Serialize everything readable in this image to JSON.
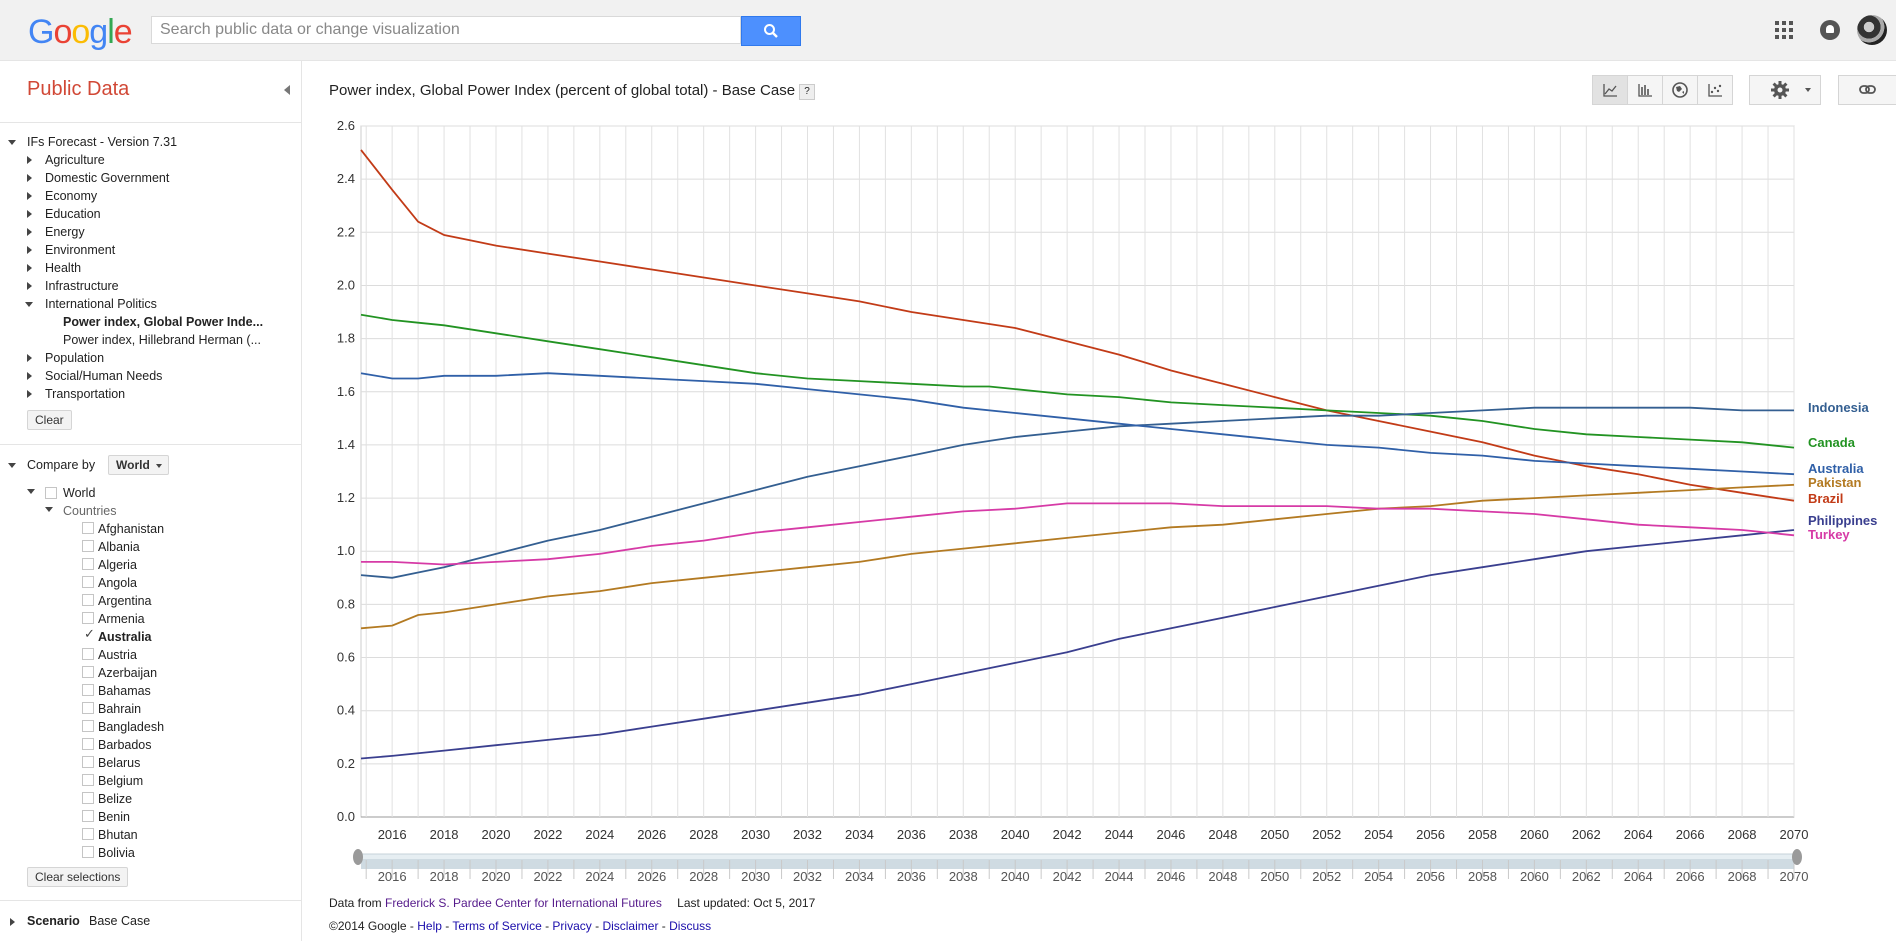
{
  "header": {
    "logo": [
      "G",
      "o",
      "o",
      "g",
      "l",
      "e"
    ],
    "logo_colors": [
      "#4285f4",
      "#ea4335",
      "#fbbc05",
      "#4285f4",
      "#34a853",
      "#ea4335"
    ],
    "search_placeholder": "Search public data or change visualization"
  },
  "sidebar": {
    "title": "Public Data",
    "dataset": "IFs Forecast - Version 7.31",
    "categories": [
      "Agriculture",
      "Domestic Government",
      "Economy",
      "Education",
      "Energy",
      "Environment",
      "Health",
      "Infrastructure",
      "International Politics"
    ],
    "selected_metric": "Power index, Global Power Inde...",
    "other_metric": "Power index, Hillebrand Herman (...",
    "categories_after": [
      "Population",
      "Social/Human Needs",
      "Transportation"
    ],
    "clear_label": "Clear",
    "compare_by_label": "Compare by",
    "compare_by_value": "World",
    "world_label": "World",
    "countries_label": "Countries",
    "countries": [
      "Afghanistan",
      "Albania",
      "Algeria",
      "Angola",
      "Argentina",
      "Armenia",
      "Australia",
      "Austria",
      "Azerbaijan",
      "Bahamas",
      "Bahrain",
      "Bangladesh",
      "Barbados",
      "Belarus",
      "Belgium",
      "Belize",
      "Benin",
      "Bhutan",
      "Bolivia"
    ],
    "checked_country": "Australia",
    "clear_selections_label": "Clear selections",
    "scenario_label": "Scenario",
    "scenario_value": "Base Case"
  },
  "main": {
    "title": "Power index, Global Power Index (percent of global total) - Base Case",
    "help": "?",
    "footer_data_from": "Data from",
    "footer_source": "Frederick S. Pardee Center for International Futures",
    "footer_updated": "Last updated: Oct 5, 2017",
    "footer_copyright": "©2014 Google -",
    "footer_links": [
      "Help",
      "Terms of Service",
      "Privacy",
      "Disclaimer",
      "Discuss"
    ]
  },
  "chart_data": {
    "type": "line",
    "title": "Power index, Global Power Index (percent of global total) - Base Case",
    "xlabel": "",
    "ylabel": "",
    "xlim": [
      2014.8,
      2070
    ],
    "ylim": [
      0,
      2.6
    ],
    "y_ticks": [
      "0.0",
      "0.2",
      "0.4",
      "0.6",
      "0.8",
      "1.0",
      "1.2",
      "1.4",
      "1.6",
      "1.8",
      "2.0",
      "2.2",
      "2.4",
      "2.6"
    ],
    "x_ticks": [
      "2016",
      "2018",
      "2020",
      "2022",
      "2024",
      "2026",
      "2028",
      "2030",
      "2032",
      "2034",
      "2036",
      "2038",
      "2040",
      "2042",
      "2044",
      "2046",
      "2048",
      "2050",
      "2052",
      "2054",
      "2056",
      "2058",
      "2060",
      "2062",
      "2064",
      "2066",
      "2068",
      "2070"
    ],
    "grid": true,
    "legend": "right, labels at line ends",
    "series": [
      {
        "name": "Brazil",
        "color": "#c23b17",
        "x": [
          2014.8,
          2016,
          2017,
          2018,
          2019,
          2020,
          2022,
          2024,
          2026,
          2028,
          2030,
          2032,
          2034,
          2036,
          2038,
          2040,
          2042,
          2044,
          2045,
          2046,
          2048,
          2050,
          2052,
          2054,
          2056,
          2058,
          2060,
          2062,
          2064,
          2066,
          2068,
          2070
        ],
        "y": [
          2.51,
          2.36,
          2.24,
          2.19,
          2.17,
          2.15,
          2.12,
          2.09,
          2.06,
          2.03,
          2.0,
          1.97,
          1.94,
          1.9,
          1.87,
          1.84,
          1.79,
          1.74,
          1.71,
          1.68,
          1.63,
          1.58,
          1.53,
          1.49,
          1.45,
          1.41,
          1.36,
          1.32,
          1.29,
          1.25,
          1.22,
          1.19
        ]
      },
      {
        "name": "Canada",
        "color": "#229322",
        "x": [
          2014.8,
          2016,
          2017,
          2018,
          2020,
          2022,
          2024,
          2026,
          2028,
          2030,
          2032,
          2034,
          2036,
          2038,
          2039,
          2040,
          2042,
          2044,
          2046,
          2048,
          2050,
          2052,
          2054,
          2056,
          2057,
          2058,
          2060,
          2062,
          2064,
          2066,
          2068,
          2070
        ],
        "y": [
          1.89,
          1.87,
          1.86,
          1.85,
          1.82,
          1.79,
          1.76,
          1.73,
          1.7,
          1.67,
          1.65,
          1.64,
          1.63,
          1.62,
          1.62,
          1.61,
          1.59,
          1.58,
          1.56,
          1.55,
          1.54,
          1.53,
          1.52,
          1.51,
          1.5,
          1.49,
          1.46,
          1.44,
          1.43,
          1.42,
          1.41,
          1.39
        ]
      },
      {
        "name": "Indonesia",
        "color": "#345f91",
        "x": [
          2014.8,
          2016,
          2017,
          2018,
          2020,
          2022,
          2024,
          2026,
          2028,
          2030,
          2032,
          2034,
          2036,
          2038,
          2040,
          2042,
          2044,
          2046,
          2048,
          2050,
          2052,
          2054,
          2056,
          2058,
          2060,
          2062,
          2064,
          2066,
          2068,
          2070
        ],
        "y": [
          0.91,
          0.9,
          0.92,
          0.94,
          0.99,
          1.04,
          1.08,
          1.13,
          1.18,
          1.23,
          1.28,
          1.32,
          1.36,
          1.4,
          1.43,
          1.45,
          1.47,
          1.48,
          1.49,
          1.5,
          1.51,
          1.51,
          1.52,
          1.53,
          1.54,
          1.54,
          1.54,
          1.54,
          1.53,
          1.53
        ]
      },
      {
        "name": "Australia",
        "color": "#3060a8",
        "x": [
          2014.8,
          2016,
          2017,
          2018,
          2020,
          2022,
          2024,
          2026,
          2028,
          2030,
          2032,
          2034,
          2036,
          2038,
          2040,
          2042,
          2044,
          2046,
          2048,
          2050,
          2052,
          2054,
          2056,
          2058,
          2060,
          2062,
          2064,
          2066,
          2068,
          2070
        ],
        "y": [
          1.67,
          1.65,
          1.65,
          1.66,
          1.66,
          1.67,
          1.66,
          1.65,
          1.64,
          1.63,
          1.61,
          1.59,
          1.57,
          1.54,
          1.52,
          1.5,
          1.48,
          1.46,
          1.44,
          1.42,
          1.4,
          1.39,
          1.37,
          1.36,
          1.34,
          1.33,
          1.32,
          1.31,
          1.3,
          1.29
        ]
      },
      {
        "name": "Pakistan",
        "color": "#b37a22",
        "x": [
          2014.8,
          2016,
          2017,
          2018,
          2020,
          2022,
          2024,
          2026,
          2028,
          2030,
          2032,
          2034,
          2036,
          2038,
          2040,
          2042,
          2044,
          2046,
          2048,
          2050,
          2052,
          2054,
          2056,
          2058,
          2060,
          2062,
          2064,
          2066,
          2068,
          2070
        ],
        "y": [
          0.71,
          0.72,
          0.76,
          0.77,
          0.8,
          0.83,
          0.85,
          0.88,
          0.9,
          0.92,
          0.94,
          0.96,
          0.99,
          1.01,
          1.03,
          1.05,
          1.07,
          1.09,
          1.1,
          1.12,
          1.14,
          1.16,
          1.17,
          1.19,
          1.2,
          1.21,
          1.22,
          1.23,
          1.24,
          1.25
        ]
      },
      {
        "name": "Philippines",
        "color": "#3a3f8f",
        "x": [
          2014.8,
          2016,
          2018,
          2020,
          2022,
          2024,
          2026,
          2028,
          2030,
          2032,
          2034,
          2036,
          2038,
          2040,
          2042,
          2044,
          2046,
          2048,
          2050,
          2052,
          2054,
          2056,
          2058,
          2060,
          2062,
          2064,
          2066,
          2068,
          2070
        ],
        "y": [
          0.22,
          0.23,
          0.25,
          0.27,
          0.29,
          0.31,
          0.34,
          0.37,
          0.4,
          0.43,
          0.46,
          0.5,
          0.54,
          0.58,
          0.62,
          0.67,
          0.71,
          0.75,
          0.79,
          0.83,
          0.87,
          0.91,
          0.94,
          0.97,
          1.0,
          1.02,
          1.04,
          1.06,
          1.08
        ]
      },
      {
        "name": "Turkey",
        "color": "#d63aa6",
        "x": [
          2014.8,
          2016,
          2018,
          2020,
          2022,
          2023,
          2024,
          2026,
          2028,
          2030,
          2032,
          2034,
          2036,
          2038,
          2040,
          2042,
          2044,
          2046,
          2048,
          2050,
          2052,
          2054,
          2056,
          2058,
          2060,
          2062,
          2064,
          2066,
          2068,
          2070
        ],
        "y": [
          0.96,
          0.96,
          0.95,
          0.96,
          0.97,
          0.98,
          0.99,
          1.02,
          1.04,
          1.07,
          1.09,
          1.11,
          1.13,
          1.15,
          1.16,
          1.18,
          1.18,
          1.18,
          1.17,
          1.17,
          1.17,
          1.16,
          1.16,
          1.15,
          1.14,
          1.12,
          1.1,
          1.09,
          1.08,
          1.06
        ]
      }
    ]
  }
}
